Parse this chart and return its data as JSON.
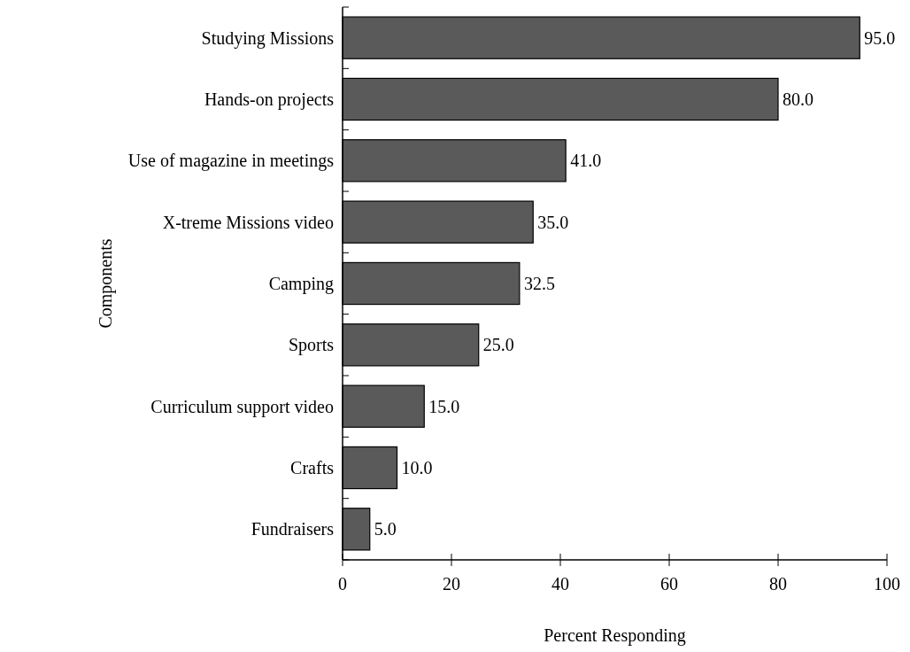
{
  "chart_data": {
    "type": "bar",
    "orientation": "horizontal",
    "xlabel": "Percent Responding",
    "ylabel": "Components",
    "categories": [
      "Studying Missions",
      "Hands-on projects",
      "Use of magazine in meetings",
      "X-treme Missions video",
      "Camping",
      "Sports",
      "Curriculum support video",
      "Crafts",
      "Fundraisers"
    ],
    "values": [
      95.0,
      80.0,
      41.0,
      35.0,
      32.5,
      25.0,
      15.0,
      10.0,
      5.0
    ],
    "value_labels": [
      "95.0",
      "80.0",
      "41.0",
      "35.0",
      "32.5",
      "25.0",
      "15.0",
      "10.0",
      "5.0"
    ],
    "color": "#5a5a5a",
    "xlim": [
      0,
      100
    ],
    "xticks": [
      0,
      20,
      40,
      60,
      80,
      100
    ],
    "grid": false
  }
}
